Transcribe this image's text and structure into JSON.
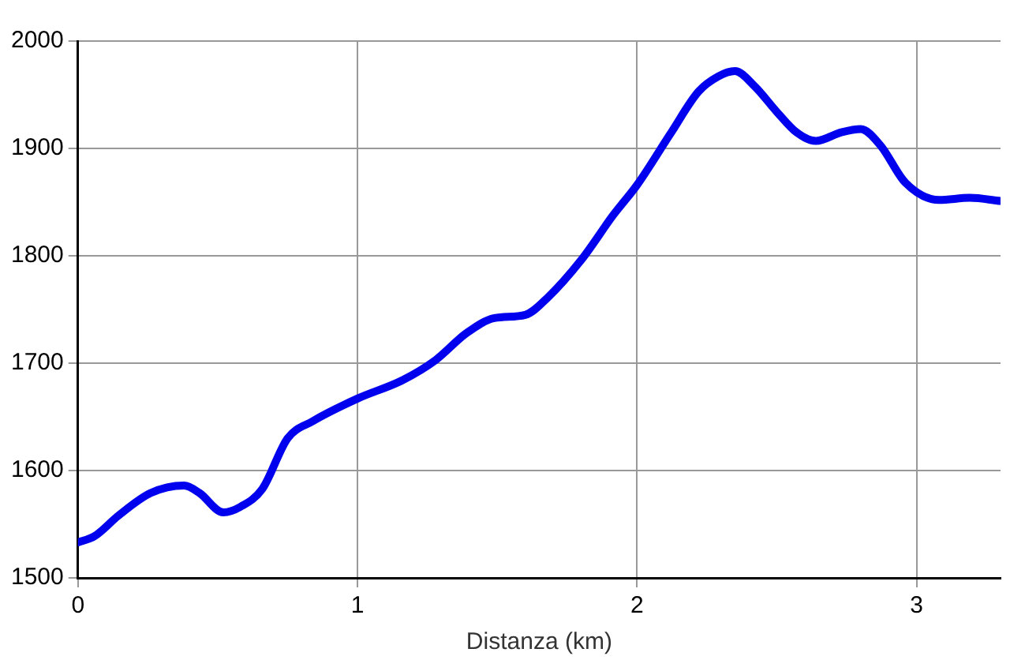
{
  "chart_data": {
    "type": "line",
    "xlabel": "Distanza (km)",
    "x": [
      0,
      0.06,
      0.145,
      0.26,
      0.38,
      0.435,
      0.52,
      0.58,
      0.66,
      0.75,
      0.84,
      1.0,
      1.16,
      1.28,
      1.39,
      1.49,
      1.6,
      1.68,
      1.8,
      1.915,
      2.0,
      2.12,
      2.22,
      2.29,
      2.35,
      2.42,
      2.5,
      2.57,
      2.64,
      2.73,
      2.8,
      2.87,
      2.96,
      3.08,
      3.19,
      3.3
    ],
    "series": [
      {
        "color": "#0000ee",
        "values": [
          1533,
          1539,
          1558,
          1579,
          1586,
          1579,
          1561,
          1566,
          1583,
          1630,
          1646,
          1667,
          1684,
          1703,
          1728,
          1742,
          1745,
          1761,
          1796,
          1838,
          1866,
          1914,
          1953,
          1967,
          1972,
          1958,
          1934,
          1915,
          1907,
          1915,
          1918,
          1903,
          1868,
          1852,
          1854,
          1851
        ]
      }
    ],
    "xlim": [
      0,
      3.3
    ],
    "xticks": [
      0,
      1,
      2,
      3
    ],
    "ylim": [
      1500,
      2000
    ],
    "yticks": [
      1500,
      1600,
      1700,
      1800,
      1900,
      2000
    ],
    "grid": true,
    "legend": false,
    "marker": "none",
    "line_style": "solid"
  }
}
